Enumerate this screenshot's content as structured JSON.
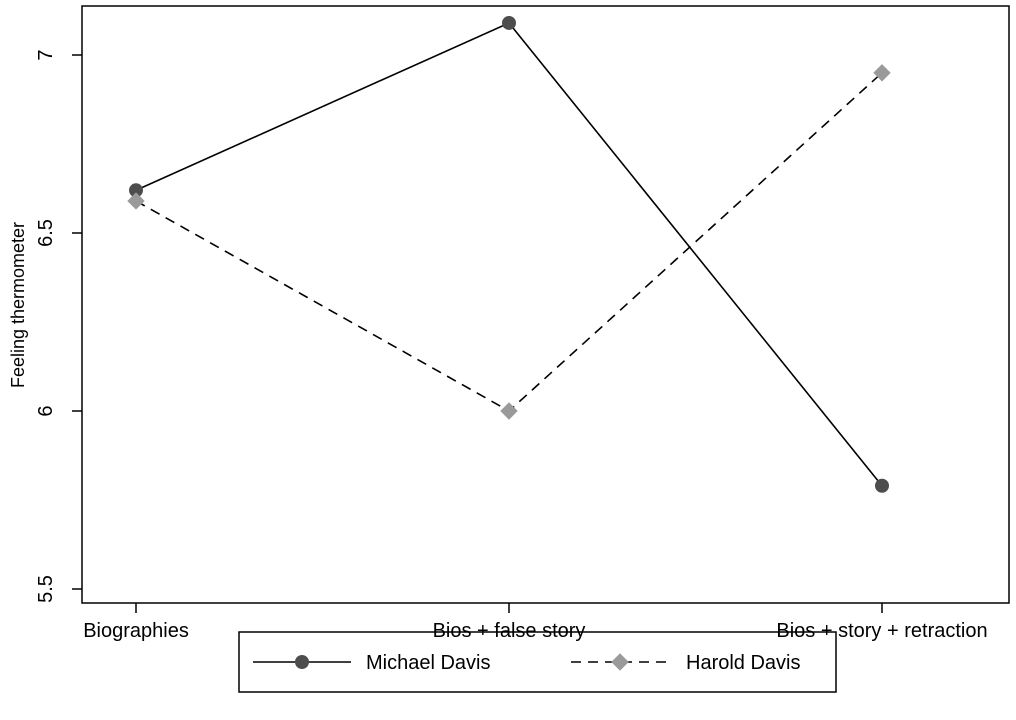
{
  "chart_data": {
    "type": "line",
    "title": "",
    "xlabel": "",
    "ylabel": "Feeling thermometer",
    "categories": [
      "Biographies",
      "Bios + false story",
      "Bios + story + retraction"
    ],
    "ylim": [
      5.5,
      7.15
    ],
    "yticks": [
      5.5,
      6,
      6.5,
      7
    ],
    "ytick_labels": [
      "5.5",
      "6",
      "6.5",
      "7"
    ],
    "grid": false,
    "legend_position": "bottom-center",
    "series": [
      {
        "name": "Michael Davis",
        "values": [
          6.62,
          7.09,
          5.79
        ],
        "line_style": "solid",
        "marker": "circle",
        "color": "#000000",
        "marker_color": "#4d4d4d"
      },
      {
        "name": "Harold Davis",
        "values": [
          6.59,
          6.0,
          6.95
        ],
        "line_style": "dashed",
        "marker": "diamond",
        "color": "#000000",
        "marker_color": "#9a9a9a"
      }
    ]
  }
}
